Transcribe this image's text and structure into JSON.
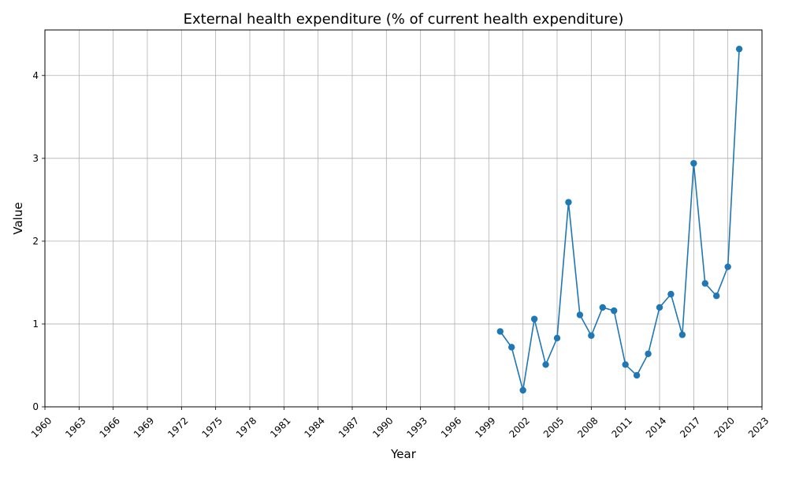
{
  "chart_data": {
    "type": "line",
    "title": "External health expenditure (% of current health expenditure)",
    "xlabel": "Year",
    "ylabel": "Value",
    "xlim": [
      1960,
      2023
    ],
    "ylim": [
      0,
      4.55
    ],
    "grid": true,
    "x_ticks": [
      1960,
      1963,
      1966,
      1969,
      1972,
      1975,
      1978,
      1981,
      1984,
      1987,
      1990,
      1993,
      1996,
      1999,
      2002,
      2005,
      2008,
      2011,
      2014,
      2017,
      2020,
      2023
    ],
    "y_ticks": [
      0,
      1,
      2,
      3,
      4
    ],
    "series": [
      {
        "color": "#1f77b4",
        "marker": "circle",
        "x": [
          2000,
          2001,
          2002,
          2003,
          2004,
          2005,
          2006,
          2007,
          2008,
          2009,
          2010,
          2011,
          2012,
          2013,
          2014,
          2015,
          2016,
          2017,
          2018,
          2019,
          2020,
          2021
        ],
        "y": [
          0.91,
          0.72,
          0.2,
          1.06,
          0.51,
          0.83,
          2.47,
          1.11,
          0.86,
          1.2,
          1.16,
          0.51,
          0.38,
          0.64,
          1.2,
          1.36,
          0.87,
          2.94,
          1.49,
          1.34,
          1.69,
          4.32
        ]
      }
    ]
  }
}
